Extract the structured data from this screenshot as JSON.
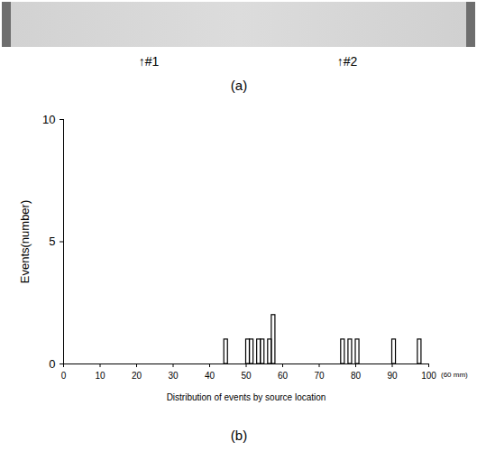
{
  "figure": {
    "panel_a": {
      "letter": "(a)",
      "labels": [
        "↑#1",
        "↑#2"
      ]
    }
  },
  "chart_data": {
    "type": "histogram",
    "panel_label": "(b)",
    "xlabel": "Distribution of events by source location",
    "ylabel": "Events(number)",
    "annotations": [
      "(60 mm)"
    ],
    "x": [
      44,
      50,
      51,
      53,
      54,
      56,
      57,
      76,
      78,
      80,
      90,
      97
    ],
    "values": [
      1,
      1,
      1,
      1,
      1,
      1,
      2,
      1,
      1,
      1,
      1,
      1
    ],
    "color": "#000000",
    "xlim": [
      0,
      100
    ],
    "xticks": [
      0,
      10,
      20,
      30,
      40,
      50,
      60,
      70,
      80,
      90,
      100
    ],
    "ylim": [
      0,
      10
    ],
    "yticks": [
      0,
      5,
      10
    ],
    "grid": false
  }
}
